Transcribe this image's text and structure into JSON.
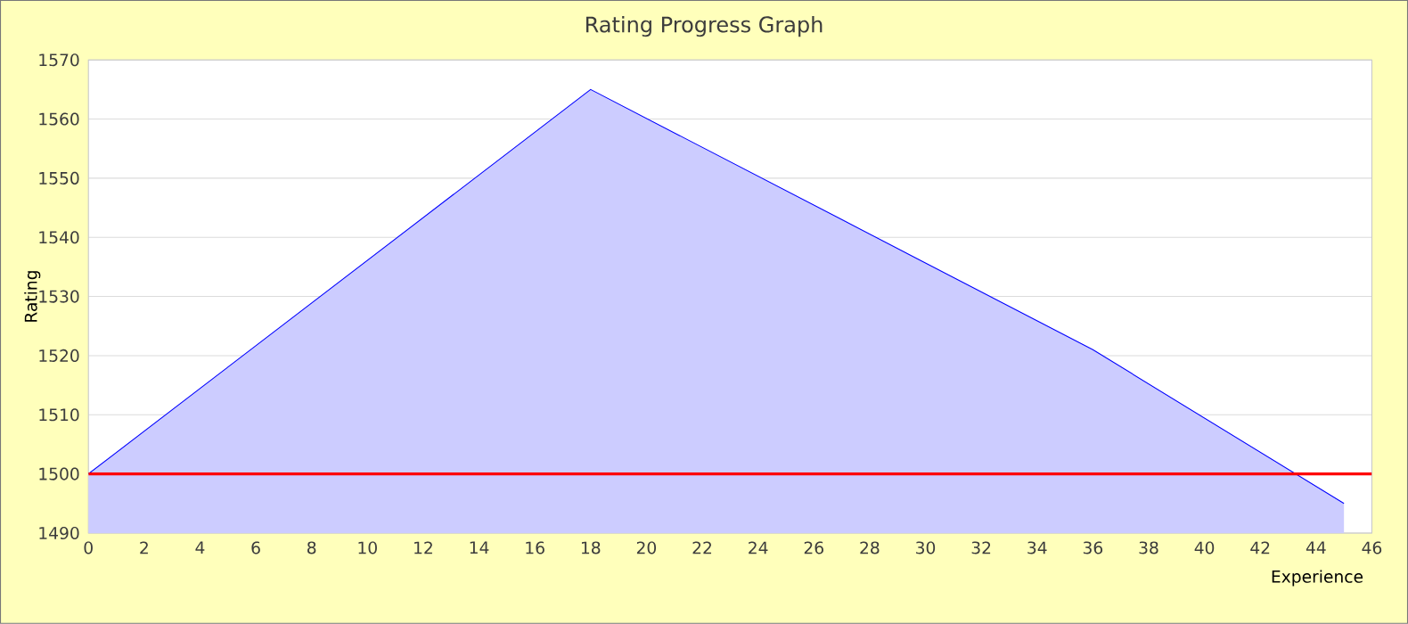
{
  "chart_data": {
    "type": "area",
    "title": "Rating Progress Graph",
    "xlabel": "Experience",
    "ylabel": "Rating",
    "x": [
      0,
      18,
      27,
      36,
      45
    ],
    "series": [
      {
        "color": "#0000ff",
        "values": [
          1500,
          1565,
          1543,
          1521,
          1495
        ]
      }
    ],
    "xlim": [
      0,
      46
    ],
    "xticks": [
      0,
      2,
      4,
      6,
      8,
      10,
      12,
      14,
      16,
      18,
      20,
      22,
      24,
      26,
      28,
      30,
      32,
      34,
      36,
      38,
      40,
      42,
      44,
      46
    ],
    "ylim": [
      1490,
      1570
    ],
    "yticks": [
      1490,
      1500,
      1510,
      1520,
      1530,
      1540,
      1550,
      1560,
      1570
    ],
    "grid": "y",
    "ref_lines": [
      {
        "axis": "y",
        "value": 1500,
        "color": "#ff0000"
      }
    ]
  }
}
